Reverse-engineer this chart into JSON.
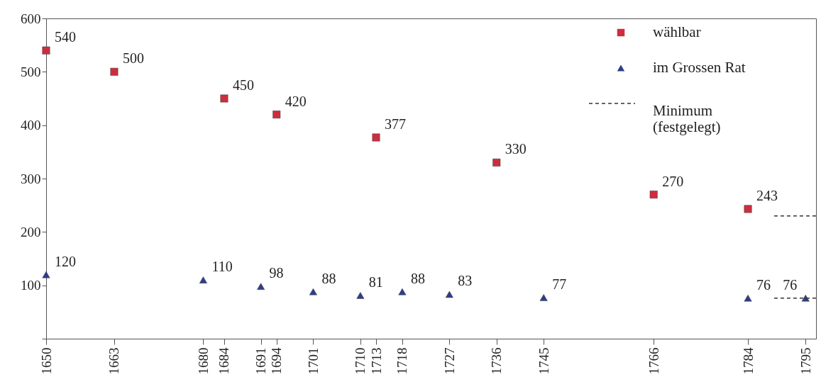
{
  "chart_data": {
    "type": "scatter",
    "grid": false,
    "legend": "top right",
    "xlim": [
      1650,
      1797
    ],
    "xticks": [
      1650,
      1663,
      1680,
      1684,
      1691,
      1694,
      1701,
      1710,
      1713,
      1718,
      1727,
      1736,
      1745,
      1766,
      1784,
      1795
    ],
    "ylim": [
      0,
      600
    ],
    "yticks": [
      {
        "value": 0,
        "label": null
      },
      100,
      200,
      300,
      400,
      500,
      600
    ],
    "series": [
      {
        "name": "wählbar",
        "marker": "square",
        "color": "#cc2e3e",
        "x": [
          1650,
          1663,
          1684,
          1694,
          1713,
          1736,
          1766,
          1784
        ],
        "values": [
          540,
          500,
          450,
          420,
          377,
          330,
          270,
          243
        ],
        "value_labels": [
          "540",
          "500",
          "450",
          "420",
          "377",
          "330",
          "270",
          "243"
        ]
      },
      {
        "name": "im Grossen Rat",
        "marker": "triangle",
        "color": "#2e3d8a",
        "x": [
          1650,
          1680,
          1691,
          1701,
          1710,
          1718,
          1727,
          1745,
          1784,
          1795
        ],
        "values": [
          120,
          110,
          98,
          88,
          81,
          88,
          83,
          77,
          76,
          76
        ],
        "value_labels": [
          "120",
          "110",
          "98",
          "88",
          "81",
          "88",
          "83",
          "77",
          "76",
          "76"
        ]
      },
      {
        "name": "Minimum\n(festgelegt)",
        "type": "line",
        "line_style": "dashed",
        "color": "#333333",
        "x": [
          1789,
          1797
        ],
        "values": [
          230,
          230
        ]
      },
      {
        "type": "line",
        "line_style": "dashed",
        "color": "#333333",
        "x": [
          1789,
          1797
        ],
        "values": [
          76,
          76
        ]
      }
    ]
  }
}
